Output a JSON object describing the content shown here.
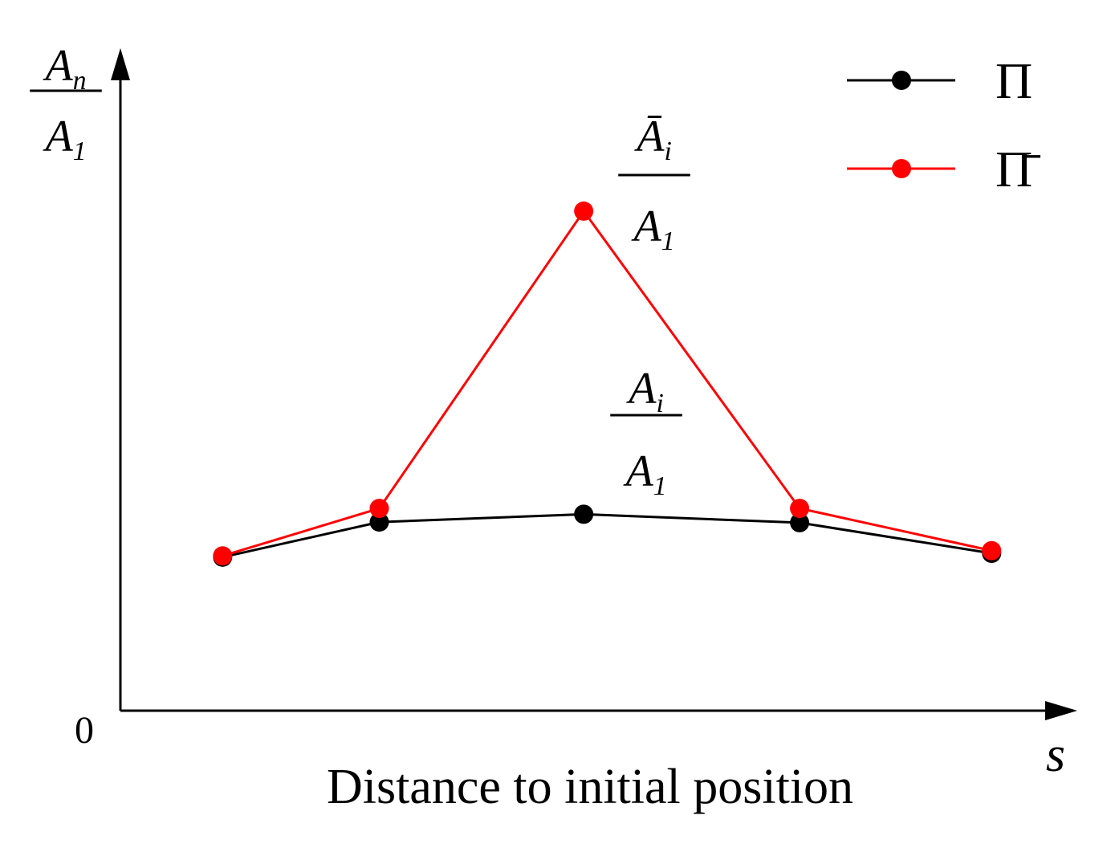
{
  "chart_data": {
    "type": "line",
    "x_label": "Distance to initial position",
    "x_symbol": "s",
    "y_label": {
      "numerator": "A",
      "numerator_sub": "n",
      "denominator": "A",
      "denominator_sub": "1"
    },
    "xlim": [
      0,
      100
    ],
    "ylim": [
      0,
      100
    ],
    "yticks": [
      0
    ],
    "x": [
      10.7,
      27.1,
      48.5,
      71.1,
      91.2
    ],
    "series": [
      {
        "name": "Π",
        "color": "#000000",
        "values": [
          23.6,
          29.0,
          30.2,
          28.9,
          24.2
        ]
      },
      {
        "name": "Π̄",
        "color": "#ff0000",
        "values": [
          23.8,
          31.1,
          76.8,
          31.1,
          24.6
        ]
      }
    ],
    "annotations": [
      {
        "numerator": "Ā",
        "numerator_sub": "i",
        "denominator": "A",
        "denominator_sub": "1"
      },
      {
        "numerator": "A",
        "numerator_sub": "i",
        "denominator": "A",
        "denominator_sub": "1"
      }
    ],
    "legend": "upper right",
    "grid": false
  }
}
